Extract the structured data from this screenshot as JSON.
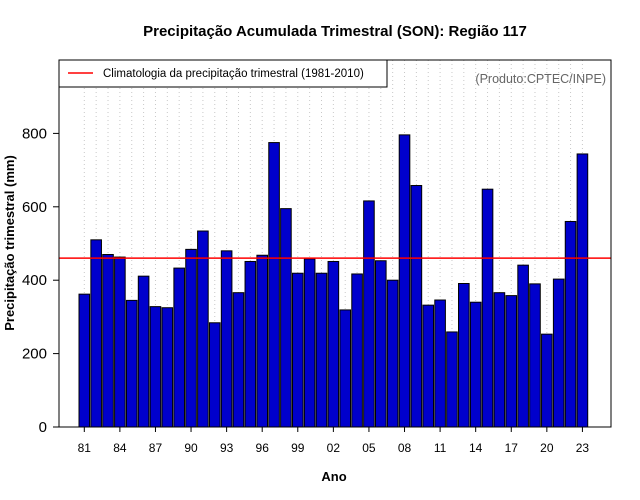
{
  "chart_data": {
    "type": "bar",
    "title": "Precipitação Acumulada Trimestral (SON): Região 117",
    "xlabel": "Ano",
    "ylabel": "Precipitação trimestral (mm)",
    "ylim": [
      0,
      920
    ],
    "yticks": [
      0,
      200,
      400,
      600,
      800
    ],
    "categories": [
      "1981",
      "1982",
      "1983",
      "1984",
      "1985",
      "1986",
      "1987",
      "1988",
      "1989",
      "1990",
      "1991",
      "1992",
      "1993",
      "1994",
      "1995",
      "1996",
      "1997",
      "1998",
      "1999",
      "2000",
      "2001",
      "2002",
      "2003",
      "2004",
      "2005",
      "2006",
      "2007",
      "2008",
      "2009",
      "2010",
      "2011",
      "2012",
      "2013",
      "2014",
      "2015",
      "2016",
      "2017",
      "2018",
      "2019",
      "2020",
      "2021",
      "2022",
      "2023"
    ],
    "values": [
      362,
      510,
      470,
      463,
      345,
      411,
      328,
      325,
      433,
      484,
      534,
      284,
      480,
      366,
      451,
      468,
      775,
      595,
      419,
      458,
      419,
      451,
      319,
      417,
      616,
      453,
      400,
      796,
      658,
      332,
      346,
      259,
      391,
      340,
      648,
      366,
      358,
      441,
      390,
      253,
      403,
      560,
      744
    ],
    "xtick_labels": [
      {
        "index": 0,
        "label": "81"
      },
      {
        "index": 3,
        "label": "84"
      },
      {
        "index": 6,
        "label": "87"
      },
      {
        "index": 9,
        "label": "90"
      },
      {
        "index": 12,
        "label": "93"
      },
      {
        "index": 15,
        "label": "96"
      },
      {
        "index": 18,
        "label": "99"
      },
      {
        "index": 21,
        "label": "02"
      },
      {
        "index": 24,
        "label": "05"
      },
      {
        "index": 27,
        "label": "08"
      },
      {
        "index": 30,
        "label": "11"
      },
      {
        "index": 33,
        "label": "14"
      },
      {
        "index": 36,
        "label": "17"
      },
      {
        "index": 39,
        "label": "20"
      },
      {
        "index": 42,
        "label": "23"
      }
    ],
    "climatology": {
      "value": 460,
      "label": "Climatologia da precipitação trimestral (1981-2010)",
      "color": "#ff0000"
    },
    "bar_color": "#0000cc",
    "legend_position": "top-left",
    "credit": "(Produto:CPTEC/INPE)",
    "grid": "vertical dotted"
  }
}
